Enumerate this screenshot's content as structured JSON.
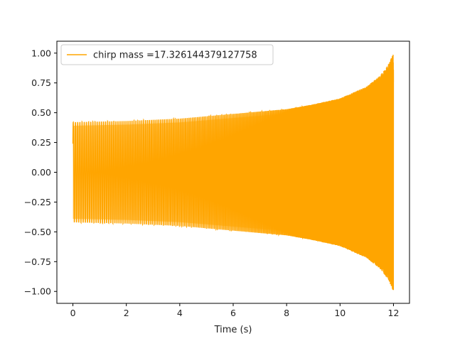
{
  "chart_data": {
    "type": "line",
    "title": "",
    "xlabel": "Time (s)",
    "ylabel": "",
    "xlim": [
      -0.6,
      12.6
    ],
    "ylim": [
      -1.1,
      1.1
    ],
    "x_ticks": [
      0,
      2,
      4,
      6,
      8,
      10,
      12
    ],
    "y_ticks": [
      -1.0,
      -0.75,
      -0.5,
      -0.25,
      0.0,
      0.25,
      0.5,
      0.75,
      1.0
    ],
    "x_tick_labels": [
      "0",
      "2",
      "4",
      "6",
      "8",
      "10",
      "12"
    ],
    "y_tick_labels": [
      "−1.00",
      "−0.75",
      "−0.50",
      "−0.25",
      "0.00",
      "0.25",
      "0.50",
      "0.75",
      "1.00"
    ],
    "legend_position": "upper-left",
    "grid": false,
    "series": [
      {
        "name": "chirp mass =17.326144379127758",
        "color": "#FFA500",
        "x_start": 0.0,
        "x_end": 12.0,
        "start_value": 0.24,
        "envelope": [
          [
            0.0,
            0.42
          ],
          [
            2.0,
            0.43
          ],
          [
            4.0,
            0.45
          ],
          [
            6.0,
            0.49
          ],
          [
            8.0,
            0.53
          ],
          [
            9.0,
            0.57
          ],
          [
            10.0,
            0.62
          ],
          [
            11.0,
            0.72
          ],
          [
            11.5,
            0.81
          ],
          [
            11.8,
            0.9
          ],
          [
            12.0,
            1.0
          ]
        ],
        "frequency_trend": "increasing"
      }
    ]
  }
}
